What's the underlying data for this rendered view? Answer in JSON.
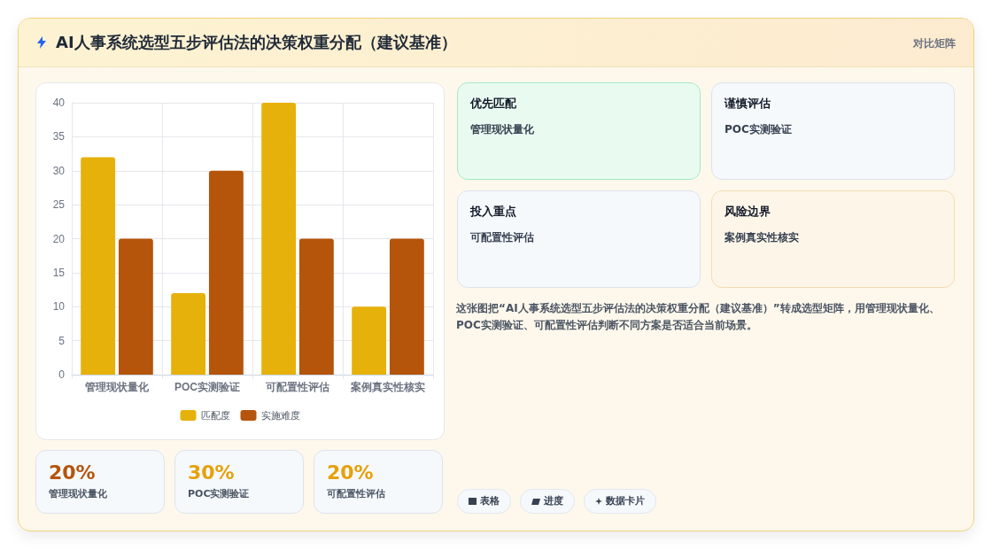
{
  "chart_data": {
    "type": "bar",
    "title": "AI人事系统选型五步评估法的决策权重分配（建议基准）",
    "categories": [
      "管理现状量化",
      "POC实测验证",
      "可配置性评估",
      "案例真实性核实"
    ],
    "series": [
      {
        "name": "匹配度",
        "color": "#e6b10a",
        "values": [
          32,
          12,
          40,
          10
        ]
      },
      {
        "name": "实施难度",
        "color": "#b5540b",
        "values": [
          20,
          30,
          20,
          20
        ]
      }
    ],
    "ylim": [
      0,
      40
    ],
    "yticks": [
      0,
      5,
      10,
      15,
      20,
      25,
      30,
      35,
      40
    ],
    "grid": true,
    "legend": "bottom",
    "annotations": [
      "对比矩阵",
      "优先匹配",
      "管理现状量化",
      "谨慎评估",
      "POC实测验证",
      "投入重点",
      "可配置性评估",
      "风险边界",
      "案例真实性核实",
      "这张图把“AI人事系统选型五步评估法的决策权重分配（建议基准）”转成选型矩阵，用管理现状量化、POC实测验证、可配置性评估判断不同方案是否适合当前场景。",
      "20%",
      "管理现状量化",
      "30%",
      "POC实测验证",
      "20%",
      "可配置性评估",
      "表格",
      "进度",
      "数据卡片"
    ]
  }
}
